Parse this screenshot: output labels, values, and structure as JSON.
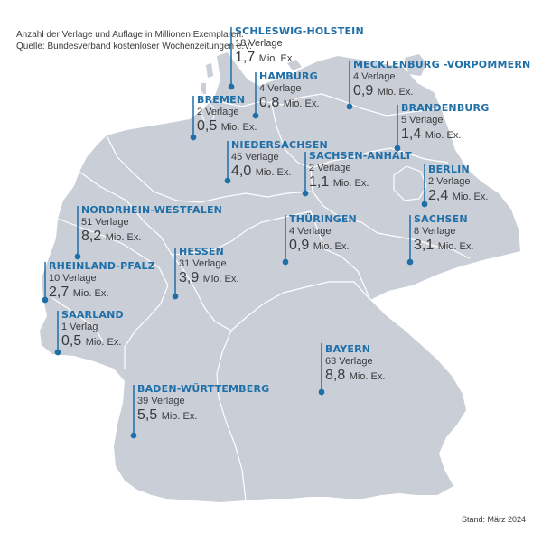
{
  "header": {
    "line1": "Anzahl der Verlage und Auflage in Millionen Exemplaren.",
    "line2": "Quelle: Bundesverband kostenloser Wochenzeitungen e.V."
  },
  "footer": {
    "stand": "Stand: März 2024"
  },
  "colors": {
    "land": "#c9ced7",
    "border": "#ffffff",
    "accent": "#1f6fa8",
    "text": "#3a3a3a"
  },
  "states": {
    "schleswig_holstein": {
      "name": "SCHLESWIG-HOLSTEIN",
      "publishers": "18 Verlage",
      "circulation": "1,7",
      "unit": "Mio. Ex."
    },
    "hamburg": {
      "name": "HAMBURG",
      "publishers": "4 Verlage",
      "circulation": "0,8",
      "unit": "Mio. Ex."
    },
    "mecklenburg_vorpommern": {
      "name": "MECKLENBURG -VORPOMMERN",
      "publishers": "4 Verlage",
      "circulation": "0,9",
      "unit": "Mio. Ex."
    },
    "bremen": {
      "name": "BREMEN",
      "publishers": "2 Verlage",
      "circulation": "0,5",
      "unit": "Mio. Ex."
    },
    "brandenburg": {
      "name": "BRANDENBURG",
      "publishers": "5 Verlage",
      "circulation": "1,4",
      "unit": "Mio. Ex."
    },
    "niedersachsen": {
      "name": "NIEDERSACHSEN",
      "publishers": "45 Verlage",
      "circulation": "4,0",
      "unit": "Mio. Ex."
    },
    "sachsen_anhalt": {
      "name": "SACHSEN-ANHALT",
      "publishers": "2 Verlage",
      "circulation": "1,1",
      "unit": "Mio. Ex."
    },
    "berlin": {
      "name": "BERLIN",
      "publishers": "2 Verlage",
      "circulation": "2,4",
      "unit": "Mio. Ex."
    },
    "nordrhein_westfalen": {
      "name": "NORDRHEIN-WESTFALEN",
      "publishers": "51 Verlage",
      "circulation": "8,2",
      "unit": "Mio. Ex."
    },
    "thueringen": {
      "name": "THÜRINGEN",
      "publishers": "4 Verlage",
      "circulation": "0,9",
      "unit": "Mio. Ex."
    },
    "sachsen": {
      "name": "SACHSEN",
      "publishers": "8 Verlage",
      "circulation": "3,1",
      "unit": "Mio. Ex."
    },
    "hessen": {
      "name": "HESSEN",
      "publishers": "31 Verlage",
      "circulation": "3,9",
      "unit": "Mio. Ex."
    },
    "rheinland_pfalz": {
      "name": "RHEINLAND-PFALZ",
      "publishers": "10 Verlage",
      "circulation": "2,7",
      "unit": "Mio. Ex."
    },
    "saarland": {
      "name": "SAARLAND",
      "publishers": "1 Verlag",
      "circulation": "0,5",
      "unit": "Mio. Ex."
    },
    "bayern": {
      "name": "BAYERN",
      "publishers": "63 Verlage",
      "circulation": "8,8",
      "unit": "Mio. Ex."
    },
    "baden_wuerttemberg": {
      "name": "BADEN-WÜRTTEMBERG",
      "publishers": "39 Verlage",
      "circulation": "5,5",
      "unit": "Mio. Ex."
    }
  }
}
